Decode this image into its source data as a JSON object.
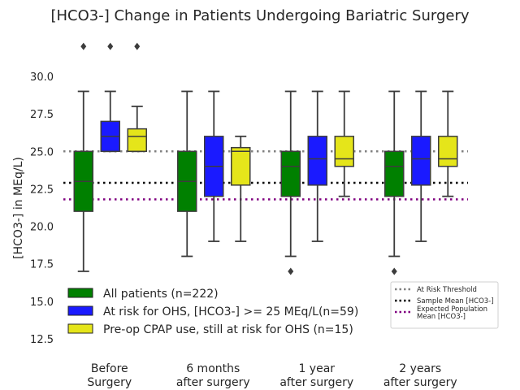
{
  "chart_data": {
    "type": "box",
    "title": "[HCO3-] Change in Patients Undergoing Bariatric Surgery",
    "xlabel": "",
    "ylabel": "[HCO3-] in MEq/L)",
    "ylim": [
      11.5,
      33.2
    ],
    "yticks": [
      "12.5",
      "15.0",
      "17.5",
      "20.0",
      "22.5",
      "25.0",
      "27.5",
      "30.0"
    ],
    "ytick_values": [
      12.5,
      15.0,
      17.5,
      20.0,
      22.5,
      25.0,
      27.5,
      30.0
    ],
    "grid": false,
    "categories": [
      {
        "line1": "Before",
        "line2": "Surgery"
      },
      {
        "line1": "6 months",
        "line2": "after surgery"
      },
      {
        "line1": "1 year",
        "line2": "after surgery"
      },
      {
        "line1": "2 years",
        "line2": "after surgery"
      }
    ],
    "series": [
      {
        "name": "All patients (n=222)",
        "color": "#008000",
        "boxes": [
          {
            "whisker_low": 17,
            "q1": 21,
            "median": 23,
            "q3": 25,
            "whisker_high": 29,
            "outliers": [
              32
            ]
          },
          {
            "whisker_low": 18,
            "q1": 21,
            "median": 23,
            "q3": 25,
            "whisker_high": 29,
            "outliers": []
          },
          {
            "whisker_low": 18,
            "q1": 22,
            "median": 24,
            "q3": 25,
            "whisker_high": 29,
            "outliers": [
              17
            ]
          },
          {
            "whisker_low": 18,
            "q1": 22,
            "median": 24,
            "q3": 25,
            "whisker_high": 29,
            "outliers": [
              17
            ]
          }
        ]
      },
      {
        "name": "At risk for OHS, [HCO3-] >= 25 MEq/L(n=59)",
        "color": "#1a1aff",
        "boxes": [
          {
            "whisker_low": 25,
            "q1": 25,
            "median": 26,
            "q3": 27,
            "whisker_high": 29,
            "outliers": [
              32
            ]
          },
          {
            "whisker_low": 19,
            "q1": 22,
            "median": 24,
            "q3": 26,
            "whisker_high": 29,
            "outliers": []
          },
          {
            "whisker_low": 19,
            "q1": 22.75,
            "median": 24.5,
            "q3": 26,
            "whisker_high": 29,
            "outliers": []
          },
          {
            "whisker_low": 19,
            "q1": 22.75,
            "median": 24.5,
            "q3": 26,
            "whisker_high": 29,
            "outliers": []
          }
        ]
      },
      {
        "name": "Pre-op CPAP use, still at risk for OHS (n=15)",
        "color": "#e5e51a",
        "boxes": [
          {
            "whisker_low": 25,
            "q1": 25,
            "median": 26,
            "q3": 26.5,
            "whisker_high": 28,
            "outliers": [
              32
            ]
          },
          {
            "whisker_low": 19,
            "q1": 22.75,
            "median": 25,
            "q3": 25.25,
            "whisker_high": 26,
            "outliers": []
          },
          {
            "whisker_low": 22,
            "q1": 24,
            "median": 24.5,
            "q3": 26,
            "whisker_high": 29,
            "outliers": []
          },
          {
            "whisker_low": 22,
            "q1": 24,
            "median": 24.5,
            "q3": 26,
            "whisker_high": 29,
            "outliers": []
          }
        ]
      }
    ],
    "reference_lines": [
      {
        "label": "At Risk Threshold",
        "value": 25.0,
        "color": "#808080"
      },
      {
        "label": "Sample Mean [HCO3-]",
        "value": 22.9,
        "color": "#000000"
      },
      {
        "label": "Expected Population Mean [HCO3-]",
        "value": 21.8,
        "color": "#800080",
        "label_lines": [
          "Expected Population",
          "Mean [HCO3-]"
        ]
      }
    ],
    "legend_placement": "lower-left",
    "reference_legend_placement": "lower-right"
  }
}
